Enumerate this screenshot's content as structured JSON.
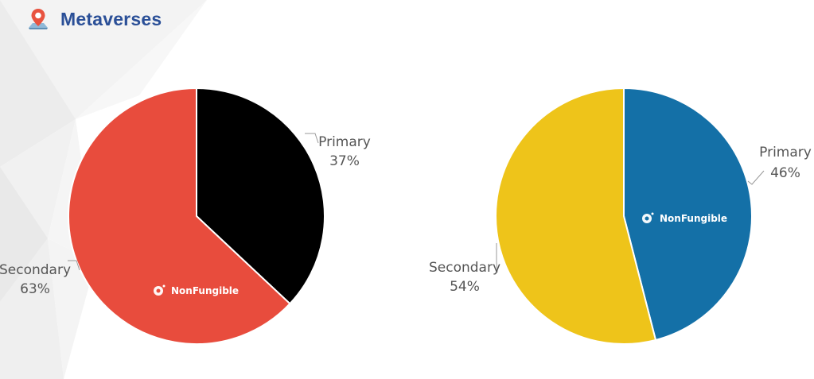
{
  "header": {
    "title": "Metaverses",
    "icon": "map-pin-icon"
  },
  "colors": {
    "title": "#2A4F97",
    "left_primary": "#000000",
    "left_secondary": "#E84C3D",
    "right_primary": "#1470A7",
    "right_secondary": "#EEC41A",
    "label": "#555555"
  },
  "watermark": "NonFungible",
  "chart_data": [
    {
      "type": "pie",
      "slices": [
        {
          "label": "Primary",
          "value": 37,
          "value_label": "37%",
          "color": "#000000"
        },
        {
          "label": "Secondary",
          "value": 63,
          "value_label": "63%",
          "color": "#E84C3D"
        }
      ]
    },
    {
      "type": "pie",
      "slices": [
        {
          "label": "Primary",
          "value": 46,
          "value_label": "46%",
          "color": "#1470A7"
        },
        {
          "label": "Secondary",
          "value": 54,
          "value_label": "54%",
          "color": "#EEC41A"
        }
      ]
    }
  ]
}
